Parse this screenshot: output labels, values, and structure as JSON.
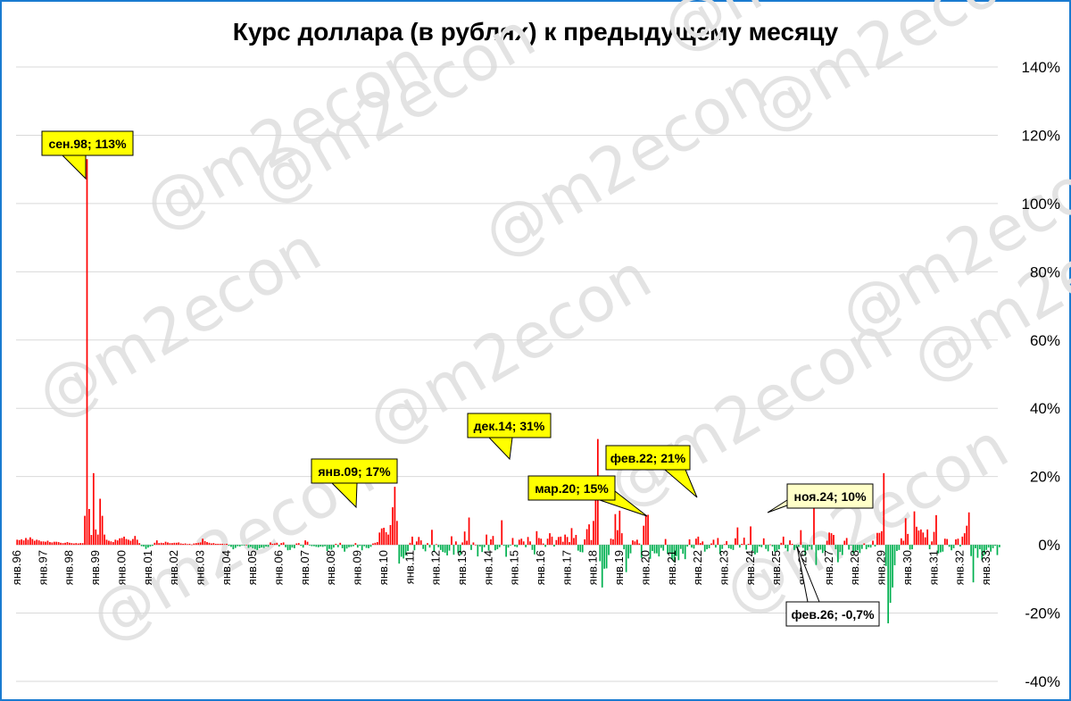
{
  "chart_data": {
    "type": "bar",
    "title": "Курс доллара (в рублях) к предыдущему месяцу",
    "watermark": "@m2econ",
    "ylim": [
      -40,
      140
    ],
    "y_ticks": [
      "140%",
      "120%",
      "100%",
      "80%",
      "60%",
      "40%",
      "20%",
      "0%",
      "-20%",
      "-40%"
    ],
    "y_tick_values": [
      140,
      120,
      100,
      80,
      60,
      40,
      20,
      0,
      -20,
      -40
    ],
    "x_tick_labels": [
      "янв.96",
      "янв.97",
      "янв.98",
      "янв.99",
      "янв.00",
      "янв.01",
      "янв.02",
      "янв.03",
      "янв.04",
      "янв.05",
      "янв.06",
      "янв.07",
      "янв.08",
      "янв.09",
      "янв.10",
      "янв.11",
      "янв.12",
      "янв.13",
      "янв.14",
      "янв.15",
      "янв.16",
      "янв.17",
      "янв.18",
      "янв.19",
      "янв.20",
      "янв.21",
      "янв.22",
      "янв.23",
      "янв.24",
      "янв.25",
      "янв.26",
      "янв.27",
      "янв.28",
      "янв.29",
      "янв.30",
      "янв.31",
      "янв.32",
      "янв.33"
    ],
    "x_start": "янв.96",
    "frequency": "monthly",
    "values_pct": [
      1.5,
      1.4,
      1.6,
      1.3,
      2.0,
      1.5,
      2.2,
      1.7,
      1.2,
      1.5,
      1.3,
      1.0,
      1.0,
      0.9,
      1.2,
      0.8,
      0.7,
      0.9,
      0.9,
      0.8,
      0.6,
      0.5,
      0.6,
      0.8,
      0.6,
      0.5,
      0.4,
      0.5,
      0.4,
      0.5,
      0.5,
      8.5,
      113,
      10.5,
      2.9,
      21,
      4.5,
      3.0,
      13.5,
      8.5,
      3.0,
      1.5,
      1.2,
      1.0,
      0.8,
      1.5,
      1.3,
      1.9,
      2.0,
      2.4,
      1.7,
      1.5,
      1.2,
      1.7,
      2.6,
      1.5,
      0.5,
      -0.4,
      -0.5,
      -1.2,
      -0.8,
      -0.5,
      -0.3,
      0.6,
      1.3,
      0.5,
      0.6,
      0.5,
      0.9,
      0.7,
      0.5,
      0.5,
      0.6,
      0.6,
      0.7,
      0.4,
      0.3,
      0.4,
      0.2,
      0.3,
      0.1,
      0.4,
      0.5,
      0.6,
      0.7,
      1.8,
      1.1,
      0.8,
      0.6,
      0.4,
      0.5,
      0.3,
      0.3,
      0.3,
      0.3,
      0.2,
      0.3,
      -0.3,
      -0.6,
      -1.3,
      -0.9,
      -0.4,
      -0.5,
      -0.2,
      -0.2,
      0.0,
      -0.9,
      -0.6,
      -1.0,
      -1.2,
      -1.5,
      -1.0,
      -0.8,
      -0.9,
      -0.5,
      -0.6,
      0.7,
      0.3,
      0.4,
      0.6,
      -0.5,
      0.5,
      0.7,
      -0.7,
      -1.6,
      -1.5,
      -0.8,
      -1.0,
      0.4,
      0.5,
      -0.3,
      -0.8,
      1.3,
      0.9,
      -0.2,
      -0.4,
      -0.4,
      -0.6,
      -0.7,
      -0.5,
      -0.6,
      -0.4,
      -1.8,
      -1.2,
      -1.4,
      -0.8,
      0.3,
      -0.7,
      0.6,
      -1.0,
      -2.0,
      -1.1,
      -0.7,
      -0.6,
      -0.4,
      0.5,
      -0.8,
      -0.3,
      -1.6,
      -0.4,
      -0.9,
      -1.0,
      -0.6,
      0.4,
      0.6,
      0.8,
      3.6,
      4.8,
      5.0,
      3.7,
      3.0,
      5.8,
      11.0,
      17.0,
      7.0,
      -5.5,
      -3.5,
      -4.0,
      -3.1,
      -1.8,
      0.6,
      2.4,
      -1.6,
      1.0,
      2.3,
      1.3,
      -1.2,
      -1.9,
      0.5,
      -0.8,
      4.4,
      -2.1,
      0.2,
      -0.7,
      -1.5,
      -2.1,
      -2.3,
      -3.1,
      -1.7,
      2.5,
      -2.9,
      1.0,
      -2.4,
      -3.0,
      0.7,
      3.9,
      1.2,
      8.0,
      -1.5,
      0.7,
      0.0,
      -3.4,
      -0.5,
      -2.1,
      -0.7,
      3.0,
      -1.7,
      1.6,
      2.6,
      -1.6,
      -1.3,
      -0.7,
      7.2,
      -0.3,
      -3.5,
      -0.8,
      -0.2,
      2.0,
      -0.5,
      -0.7,
      1.5,
      1.8,
      1.0,
      -0.7,
      2.3,
      1.0,
      -1.5,
      -2.8,
      4.0,
      2.0,
      1.8,
      0.4,
      -0.6,
      1.8,
      3.4,
      2.4,
      -0.5,
      1.4,
      2.3,
      2.4,
      0.9,
      3.0,
      2.3,
      0.8,
      4.9,
      2.0,
      2.9,
      -1.7,
      -2.1,
      -2.2,
      1.6,
      4.6,
      6.0,
      1.4,
      7.0,
      14.1,
      31.0,
      -4.8,
      -12.5,
      -7.0,
      -6.9,
      -3.0,
      1.8,
      1.6,
      9.0,
      4.3,
      10.0,
      3.4,
      -1.3,
      -8.0,
      -4.0,
      -2.5,
      1.3,
      1.0,
      1.5,
      0.4,
      -3.8,
      5.6,
      8.8,
      8.8,
      -4.1,
      -1.8,
      -2.5,
      -2.5,
      -3.4,
      -0.9,
      -1.7,
      1.7,
      -2.7,
      -2.5,
      -4.3,
      -5.1,
      -3.3,
      -4.5,
      -1.2,
      -2.6,
      -4.2,
      -0.5,
      1.6,
      -0.8,
      -1.1,
      1.8,
      2.4,
      0.5,
      1.0,
      -2.0,
      -1.3,
      -1.0,
      0.4,
      1.5,
      -0.8,
      2.0,
      -2.7,
      -1.2,
      0.2,
      1.1,
      -1.0,
      -1.2,
      -1.5,
      1.9,
      5.1,
      -0.8,
      0.3,
      2.1,
      -1.4,
      0.3,
      5.4,
      -1.8,
      -2.8,
      -2.3,
      -0.5,
      -0.7,
      1.9,
      -1.2,
      -1.9,
      0.1,
      -0.5,
      -2.0,
      -1.7,
      -1.3,
      0.6,
      2.4,
      -1.0,
      -1.9,
      1.3,
      0.3,
      -1.5,
      -0.9,
      -0.6,
      4.3,
      -0.9,
      -3.2,
      -1.6,
      -0.5,
      -1.4,
      15.0,
      -5.9,
      -1.6,
      -1.4,
      -2.4,
      -1.8,
      1.2,
      3.6,
      3.4,
      2.9,
      -1.3,
      -5.1,
      -2.1,
      -3.0,
      1.2,
      2.0,
      -1.4,
      -0.2,
      -2.6,
      -2.0,
      -1.6,
      -2.4,
      -1.2,
      0.4,
      -1.3,
      -0.7,
      -0.8,
      1.2,
      -0.5,
      3.5,
      3.5,
      4.0,
      21.0,
      -6.2,
      -23.0,
      -17.0,
      -12.5,
      -6.0,
      -1.8,
      -1.5,
      1.9,
      1.2,
      7.8,
      3.2,
      -1.4,
      -1.3,
      9.8,
      5.3,
      4.2,
      4.5,
      3.6,
      2.2,
      4.5,
      -1.3,
      1.0,
      3.8,
      8.7,
      -2.5,
      -2.2,
      -2.0,
      1.8,
      1.7,
      -0.6,
      -1.6,
      -1.0,
      1.6,
      1.8,
      -0.5,
      2.4,
      3.4,
      5.6,
      9.5,
      -3.3,
      -11.0,
      -1.0,
      -3.8,
      -1.3,
      -4.5,
      -3.0,
      -1.5,
      -0.8,
      -2.0,
      -1.0,
      -0.3,
      -3.0,
      -0.7
    ],
    "annotations": [
      {
        "text": "сен.98; 113%",
        "category": "сен.98",
        "value": 113
      },
      {
        "text": "янв.09; 17%",
        "category": "янв.09",
        "value": 17
      },
      {
        "text": "дек.14; 31%",
        "category": "дек.14",
        "value": 31
      },
      {
        "text": "мар.20; 15%",
        "category": "мар.20",
        "value": 15
      },
      {
        "text": "фев.22; 21%",
        "category": "фев.22",
        "value": 21
      },
      {
        "text": "ноя.24; 10%",
        "category": "ноя.24",
        "value": 10
      },
      {
        "text": "фев.26; -0,7%",
        "category": "фев.26",
        "value": -0.7
      }
    ],
    "colors": {
      "positive": "#ff0000",
      "negative": "#00b050",
      "callout_fill": "#ffff00",
      "callout_fill_pale": "#ffffc8",
      "callout_fill_white": "#ffffff",
      "grid": "#d9d9d9",
      "frame": "#1a7bd0"
    },
    "grid": true,
    "y_axis_side": "right"
  }
}
